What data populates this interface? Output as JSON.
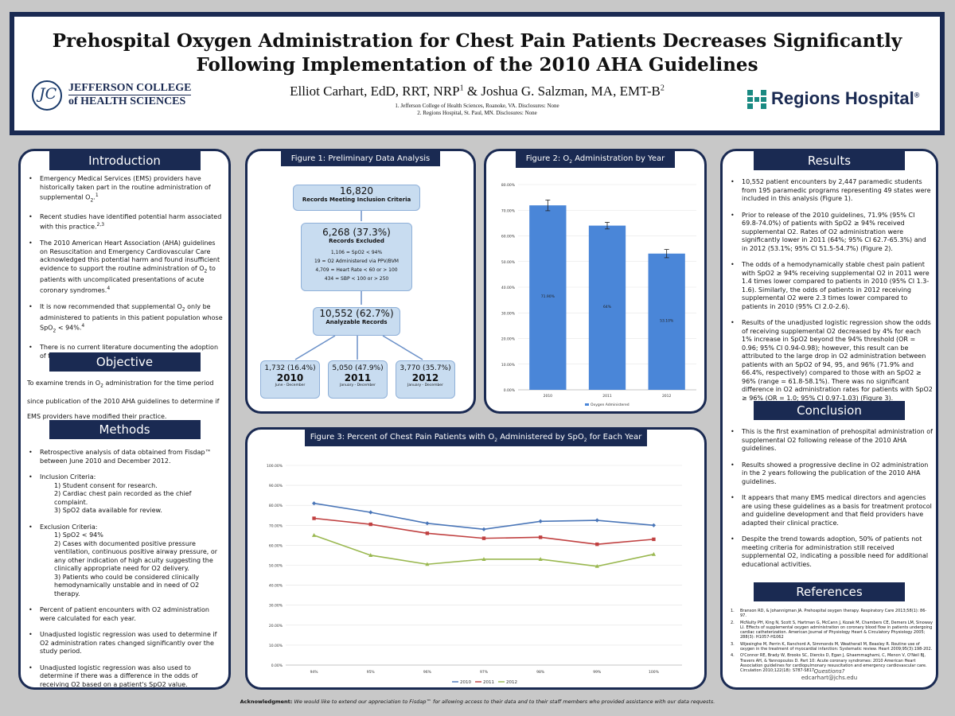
{
  "header": {
    "title_line1": "Prehospital Oxygen Administration for Chest Pain Patients Decreases Significantly",
    "title_line2": "Following Implementation of the 2010 AHA Guidelines",
    "author1": "Elliot Carhart, EdD, RRT, NRP",
    "author1_sup": "1",
    "author_join": " & Joshua G. Salzman, MA, EMT-B",
    "author2_sup": "2",
    "affiliation1": "1. Jefferson College of Health Sciences, Roanoke, VA. Disclosures: None",
    "affiliation2": "2. Regions Hospital, St. Paul, MN. Disclosures: None",
    "jefferson_line1": "JEFFERSON COLLEGE",
    "jefferson_line2": "of HEALTH SCIENCES",
    "jefferson_seal": "JC",
    "regions_name": "Regions Hospital",
    "regions_mark": "®"
  },
  "introduction": {
    "title": "Introduction",
    "items": [
      {
        "pre": "Emergency Medical Services (EMS) providers have historically taken part in the routine administration of supplemental O",
        "sub": "2",
        "post": ".",
        "sup": "1"
      },
      {
        "pre": "Recent studies have identified potential harm associated with this practice.",
        "sup": "2,3"
      },
      {
        "pre": "The 2010 American Heart Association (AHA) guidelines on Resuscitation and Emergency Cardiovascular Care acknowledged this potential harm and found insufficient evidence to support the routine administration of O",
        "sub": "2",
        "post": " to patients with uncomplicated presentations of acute coronary syndromes.",
        "sup": "4"
      },
      {
        "pre": "It is now recommended that supplemental O",
        "sub": "2",
        "post": " only be administered to patients in this patient population whose SpO",
        "sub2": "2",
        "post2": " < 94%.",
        "sup": "4"
      },
      {
        "pre": "There is no current literature documenting the adoption of this practice by EMS providers."
      }
    ]
  },
  "objective": {
    "title": "Objective",
    "text_pre": "To examine trends in O",
    "text_sub": "2",
    "text_post": " administration for the time period since publication of the 2010 AHA guidelines to determine if EMS providers have modified their practice."
  },
  "methods": {
    "title": "Methods",
    "item1": "Retrospective analysis of data obtained from Fisdap™ between June 2010 and December 2012.",
    "inclusion_label": "Inclusion Criteria:",
    "inclusion": [
      "1) Student consent for research.",
      "2) Cardiac chest pain recorded as the chief complaint.",
      "3) SpO2 data available for review."
    ],
    "exclusion_label": "Exclusion Criteria:",
    "exclusion1": "1) SpO2 < 94%",
    "exclusion2": "2) Cases with documented positive pressure ventilation, continuous positive airway pressure, or any other indication of high acuity suggesting the clinically appropriate need for O2 delivery.",
    "exclusion3": "3) Patients who could be considered clinically hemodynamically unstable and in need of O2 therapy.",
    "item3": "Percent of patient encounters with O2 administration were calculated for each year.",
    "item4": "Unadjusted logistic regression was used to determine if O2 administration rates changed significantly over the study period.",
    "item5": "Unadjusted logistic regression was also used to determine if there was a difference in the odds of receiving O2 based on a patient's SpO2 value."
  },
  "figure1": {
    "title": "Figure 1: Preliminary Data Analysis",
    "top_n": "16,820",
    "top_label": "Records Meeting Inclusion Criteria",
    "excl_n": "6,268 (37.3%)",
    "excl_label": "Records Excluded",
    "excl_details": [
      "1,106 = SpO2 < 94%",
      "19 = O2 Administered via PPV/BVM",
      "4,709 = Heart Rate < 60 or > 100",
      "434 = SBP < 100 or > 250"
    ],
    "anal_n": "10,552 (62.7%)",
    "anal_label": "Analyzable Records",
    "years": [
      {
        "n": "1,732 (16.4%)",
        "year": "2010",
        "range": "June - December"
      },
      {
        "n": "5,050 (47.9%)",
        "year": "2011",
        "range": "January - December"
      },
      {
        "n": "3,770 (35.7%)",
        "year": "2012",
        "range": "January - December"
      }
    ]
  },
  "figure2": {
    "title": "Figure 2: O2 Administration by Year",
    "legend": "Oxygen Administered",
    "bar_labels": [
      "71.90%",
      "64%",
      "53.10%"
    ]
  },
  "figure3": {
    "title": "Figure 3: Percent of Chest Pain Patients with O2 Administered by SpO2 for Each Year"
  },
  "results": {
    "title": "Results",
    "r1": "10,552 patient encounters by 2,447 paramedic students from 195 paramedic programs representing 49 states were included in this analysis (Figure 1).",
    "r2": "Prior to release of the 2010 guidelines, 71.9% (95% CI 69.8-74.0%) of patients with SpO2 ≥ 94% received supplemental O2. Rates of O2 administration were significantly lower in 2011 (64%; 95% CI 62.7-65.3%) and in 2012 (53.1%; 95% CI 51.5-54.7%) (Figure 2).",
    "r3": "The odds of a hemodynamically stable chest pain patient with SpO2 ≥ 94% receiving supplemental O2 in 2011 were 1.4 times lower compared to patients in 2010 (95% CI 1.3-1.6). Similarly, the odds of patients in 2012 receiving supplemental O2 were 2.3 times lower compared to patients in 2010 (95% CI 2.0-2.6).",
    "r4": "Results of the unadjusted logistic regression show the odds of receiving supplemental O2 decreased by 4% for each 1% increase in SpO2 beyond the 94% threshold (OR = 0.96; 95% CI 0.94-0.98); however, this result can be attributed to the large drop in O2 administration between patients with an SpO2 of 94, 95, and 96% (71.9% and 66.4%, respectively) compared to those with an SpO2 ≥ 96% (range = 61.8-58.1%). There was no significant difference in O2 administration rates for patients with SpO2 ≥ 96% (OR = 1.0; 95% CI 0.97-1.03) (Figure 3)."
  },
  "conclusion": {
    "title": "Conclusion",
    "c1": "This is the first examination of prehospital administration of supplemental O2 following release of the 2010 AHA guidelines.",
    "c2": "Results showed a progressive decline in O2 administration in the 2 years following the publication of the 2010 AHA guidelines.",
    "c3": "It appears that many EMS medical directors and agencies are using these guidelines as a basis for treatment protocol and guideline development and that field providers have adapted their clinical practice.",
    "c4": "Despite the trend towards adoption, 50% of patients not meeting criteria for administration still received supplemental O2, indicating a possible need for additional educational activities."
  },
  "references": {
    "title": "References",
    "items": [
      "Branson RD, & Johannigman JA. Prehospital oxygen therapy. Respiratory Care 2013;58(1): 86-97.",
      "McNulty PH, King N, Scott S, Hartman G, McCann J, Kozak M, Chambers CE, Demers LM, Sinoway LI. Effects of supplemental oxygen administration on coronary blood flow in patients undergoing cardiac catheterization. American Journal of Physiology Heart & Circulatory Physiology 2005; 288(3): H1057-H1062",
      "Wijesinghe M, Perrin K, Ranchord A, Simmonds M, Weatherall M, Beasley R. Routine use of oxygen in the treatment of myocardial infarction: Systematic review. Heart 2009;95(3):198-202.",
      "O'Connor RE, Brady W, Brooks SC, Diercks D, Egan J, Ghaemmaghami, C, Menon V, O'Neil BJ, Travers AH, & Yannopoulos D. Part 10: Acute coronary syndromes: 2010 American Heart Association guidelines for cardiopulmonary resuscitation and emergency cardiovascular care. Circulation 2010;122(18): S787-S817."
    ],
    "questions": "Questions?",
    "email": "edcarhart@jchs.edu"
  },
  "acknowledgment": {
    "label": "Acknowledgment:",
    "text": " We would like to extend our appreciation to Fisdap™ for allowing access to their data and to their staff members who provided assistance with our data requests."
  },
  "chart_data": [
    {
      "type": "bar",
      "categories": [
        "2010",
        "2011",
        "2012"
      ],
      "series": [
        {
          "name": "Oxygen Administered",
          "values": [
            71.9,
            64.0,
            53.1
          ],
          "error": [
            2.1,
            1.3,
            1.6
          ]
        }
      ],
      "ylim": [
        0,
        80
      ],
      "yticks": [
        "0.00%",
        "10.00%",
        "20.00%",
        "30.00%",
        "40.00%",
        "50.00%",
        "60.00%",
        "70.00%",
        "80.00%"
      ],
      "color": "#4a86d8",
      "legend_position": "bottom"
    },
    {
      "type": "line",
      "x": [
        "94%",
        "95%",
        "96%",
        "97%",
        "98%",
        "99%",
        "100%"
      ],
      "series": [
        {
          "name": "2010",
          "values": [
            81.0,
            76.5,
            71.0,
            68.0,
            72.0,
            72.5,
            70.0
          ],
          "color": "#4a76b8",
          "marker": "diamond"
        },
        {
          "name": "2011",
          "values": [
            73.5,
            70.5,
            66.0,
            63.5,
            64.0,
            60.5,
            63.0
          ],
          "color": "#c04040",
          "marker": "square"
        },
        {
          "name": "2012",
          "values": [
            65.0,
            55.0,
            50.5,
            53.0,
            53.0,
            49.5,
            55.5
          ],
          "color": "#9ab850",
          "marker": "triangle"
        }
      ],
      "ylim": [
        0,
        100
      ],
      "yticks": [
        "0.00%",
        "10.00%",
        "20.00%",
        "30.00%",
        "40.00%",
        "50.00%",
        "60.00%",
        "70.00%",
        "80.00%",
        "90.00%",
        "100.00%"
      ],
      "legend_position": "bottom"
    }
  ]
}
